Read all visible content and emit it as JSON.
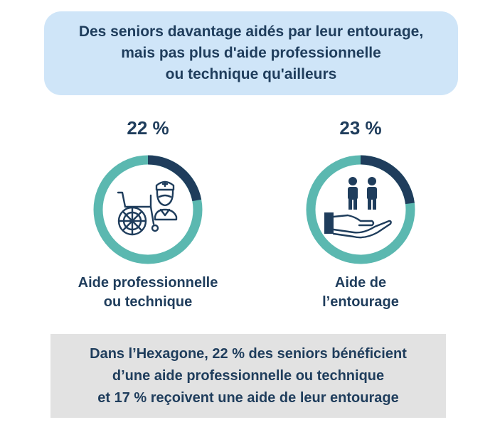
{
  "banner": {
    "line1": "Des seniors davantage aidés par leur entourage,",
    "line2": "mais pas plus d'aide professionnelle",
    "line3": "ou technique qu'ailleurs"
  },
  "items": [
    {
      "percent_label": "22 %",
      "share": 0.22,
      "label_line1": "Aide professionnelle",
      "label_line2": "ou technique",
      "icon": "nurse-wheelchair-icon"
    },
    {
      "percent_label": "23 %",
      "share": 0.23,
      "label_line1": "Aide de",
      "label_line2": "l’entourage",
      "icon": "helping-hand-people-icon"
    }
  ],
  "footer": {
    "line1": "Dans l’Hexagone, 22 % des seniors bénéficient",
    "line2": "d’une aide professionnelle ou technique",
    "line3": "et 17 % reçoivent une aide de leur entourage"
  },
  "colors": {
    "ring_base": "#5bb8b0",
    "ring_highlight": "#1f3d5c",
    "text": "#1f3d5c",
    "banner_bg": "#cfe5f8",
    "footer_bg": "#e2e2e2"
  }
}
